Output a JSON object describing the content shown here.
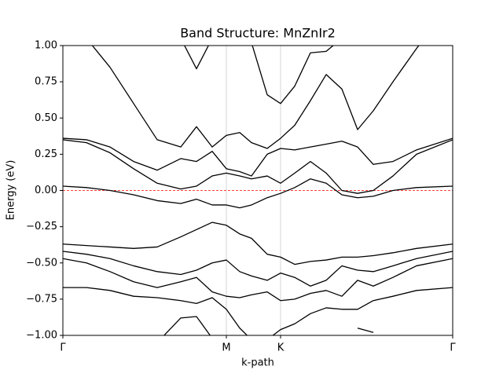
{
  "chart_data": {
    "type": "line",
    "title": "Band Structure: MnZnIr2",
    "xlabel": "k-path",
    "ylabel": "Energy (eV)",
    "x": [
      0,
      0.3,
      0.6,
      0.9,
      1.2,
      1.5,
      1.7,
      1.9,
      2.08,
      2.25,
      2.4,
      2.6,
      2.77,
      2.95,
      3.15,
      3.35,
      3.55,
      3.75,
      3.95,
      4.2,
      4.5,
      4.96
    ],
    "xlim": [
      0,
      4.96
    ],
    "xticks": [
      {
        "value": 0,
        "label": "Γ"
      },
      {
        "value": 2.08,
        "label": "M"
      },
      {
        "value": 2.77,
        "label": "K"
      },
      {
        "value": 4.96,
        "label": "Γ"
      }
    ],
    "ylim": [
      -1,
      1
    ],
    "yticks": [
      {
        "value": -1,
        "label": "−1.00"
      },
      {
        "value": -0.75,
        "label": "−0.75"
      },
      {
        "value": -0.5,
        "label": "−0.50"
      },
      {
        "value": -0.25,
        "label": "−0.25"
      },
      {
        "value": 0,
        "label": "0.00"
      },
      {
        "value": 0.25,
        "label": "0.25"
      },
      {
        "value": 0.5,
        "label": "0.50"
      },
      {
        "value": 0.75,
        "label": "0.75"
      },
      {
        "value": 1,
        "label": "1.00"
      }
    ],
    "xgrid": true,
    "color": "#000000",
    "hline": {
      "value": 0,
      "color": "#ff0000",
      "style": "dashed"
    },
    "series": [
      {
        "values": [
          null,
          null,
          null,
          null,
          -1.05,
          -0.88,
          -0.87,
          -1.02,
          null,
          null,
          null,
          null,
          null,
          null,
          null,
          null,
          null,
          -0.95,
          -0.98,
          null,
          null,
          null
        ]
      },
      {
        "values": [
          -0.67,
          -0.67,
          -0.69,
          -0.73,
          -0.74,
          -0.76,
          -0.78,
          -0.74,
          -0.82,
          -0.95,
          -1.03,
          -1.03,
          -0.96,
          -0.92,
          -0.85,
          -0.81,
          -0.82,
          -0.82,
          -0.76,
          -0.73,
          -0.69,
          -0.67
        ]
      },
      {
        "values": [
          -0.47,
          -0.5,
          -0.56,
          -0.63,
          -0.67,
          -0.63,
          -0.6,
          -0.7,
          -0.73,
          -0.74,
          -0.72,
          -0.7,
          -0.76,
          -0.75,
          -0.71,
          -0.69,
          -0.73,
          -0.62,
          -0.66,
          -0.6,
          -0.52,
          -0.47
        ]
      },
      {
        "values": [
          -0.42,
          -0.44,
          -0.47,
          -0.52,
          -0.56,
          -0.58,
          -0.55,
          -0.5,
          -0.48,
          -0.56,
          -0.59,
          -0.62,
          -0.57,
          -0.6,
          -0.66,
          -0.62,
          -0.52,
          -0.55,
          -0.56,
          -0.52,
          -0.47,
          -0.42
        ]
      },
      {
        "values": [
          -0.37,
          -0.38,
          -0.39,
          -0.4,
          -0.39,
          -0.32,
          -0.27,
          -0.22,
          -0.24,
          -0.3,
          -0.33,
          -0.44,
          -0.46,
          -0.51,
          -0.49,
          -0.48,
          -0.46,
          -0.46,
          -0.45,
          -0.43,
          -0.4,
          -0.37
        ]
      },
      {
        "values": [
          0.03,
          0.02,
          0.0,
          -0.03,
          -0.07,
          -0.09,
          -0.06,
          -0.1,
          -0.1,
          -0.12,
          -0.1,
          -0.05,
          -0.02,
          0.02,
          0.08,
          0.05,
          -0.03,
          -0.05,
          -0.04,
          0.0,
          0.02,
          0.03
        ]
      },
      {
        "values": [
          0.35,
          0.33,
          0.26,
          0.15,
          0.05,
          0.01,
          0.03,
          0.1,
          0.12,
          0.1,
          0.08,
          0.1,
          0.05,
          0.12,
          0.2,
          0.12,
          0.0,
          -0.02,
          0.0,
          0.1,
          0.25,
          0.35
        ]
      },
      {
        "values": [
          0.36,
          0.35,
          0.3,
          0.2,
          0.14,
          0.22,
          0.2,
          0.27,
          0.15,
          0.13,
          0.1,
          0.25,
          0.29,
          0.28,
          0.3,
          0.32,
          0.34,
          0.3,
          0.18,
          0.2,
          0.28,
          0.36
        ]
      },
      {
        "values": [
          1.2,
          1.05,
          0.85,
          0.6,
          0.35,
          0.3,
          0.44,
          0.3,
          0.38,
          0.4,
          0.33,
          0.29,
          0.36,
          0.45,
          0.62,
          0.8,
          0.7,
          0.42,
          0.55,
          0.75,
          0.98,
          1.3
        ]
      },
      {
        "values": [
          null,
          null,
          null,
          null,
          null,
          1.05,
          0.84,
          1.05,
          null,
          null,
          1.02,
          0.66,
          0.6,
          0.72,
          0.95,
          0.96,
          1.05,
          null,
          null,
          null,
          null,
          null
        ]
      }
    ]
  }
}
